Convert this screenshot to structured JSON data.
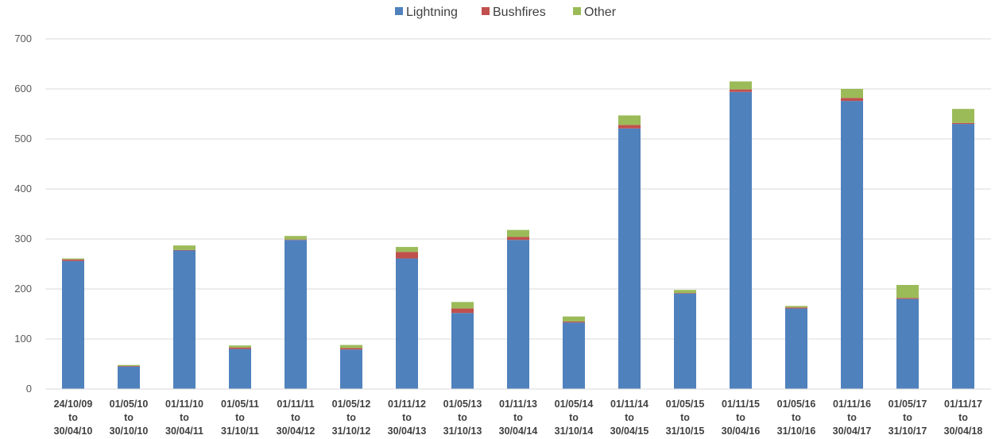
{
  "chart_data": {
    "type": "bar",
    "stacked": true,
    "title": "",
    "xlabel": "",
    "ylabel": "",
    "ylim": [
      0,
      700
    ],
    "yticks": [
      0,
      100,
      200,
      300,
      400,
      500,
      600,
      700
    ],
    "grid": true,
    "legend_position": "top",
    "categories": [
      [
        "24/10/09",
        "to",
        "30/04/10"
      ],
      [
        "01/05/10",
        "to",
        "30/10/10"
      ],
      [
        "01/11/10",
        "to",
        "30/04/11"
      ],
      [
        "01/05/11",
        "to",
        "31/10/11"
      ],
      [
        "01/11/11",
        "to",
        "30/04/12"
      ],
      [
        "01/05/12",
        "to",
        "31/10/12"
      ],
      [
        "01/11/12",
        "to",
        "30/04/13"
      ],
      [
        "01/05/13",
        "to",
        "31/10/13"
      ],
      [
        "01/11/13",
        "to",
        "30/04/14"
      ],
      [
        "01/05/14",
        "to",
        "31/10/14"
      ],
      [
        "01/11/14",
        "to",
        "30/04/15"
      ],
      [
        "01/05/15",
        "to",
        "31/10/15"
      ],
      [
        "01/11/15",
        "to",
        "30/04/16"
      ],
      [
        "01/05/16",
        "to",
        "31/10/16"
      ],
      [
        "01/11/16",
        "to",
        "30/04/17"
      ],
      [
        "01/05/17",
        "to",
        "31/10/17"
      ],
      [
        "01/11/17",
        "to",
        "30/04/18"
      ]
    ],
    "series": [
      {
        "name": "Lightning",
        "color": "#4f81bd",
        "values": [
          256,
          45,
          277,
          80,
          298,
          79,
          261,
          152,
          298,
          133,
          521,
          191,
          594,
          161,
          576,
          180,
          530
        ]
      },
      {
        "name": "Bushfires",
        "color": "#c0504d",
        "values": [
          3,
          1,
          1,
          3,
          1,
          3,
          13,
          9,
          6,
          2,
          7,
          1,
          5,
          2,
          6,
          2,
          2
        ]
      },
      {
        "name": "Other",
        "color": "#9bbb59",
        "values": [
          2,
          2,
          9,
          4,
          7,
          6,
          10,
          13,
          14,
          10,
          19,
          6,
          16,
          3,
          18,
          26,
          28
        ]
      }
    ]
  }
}
